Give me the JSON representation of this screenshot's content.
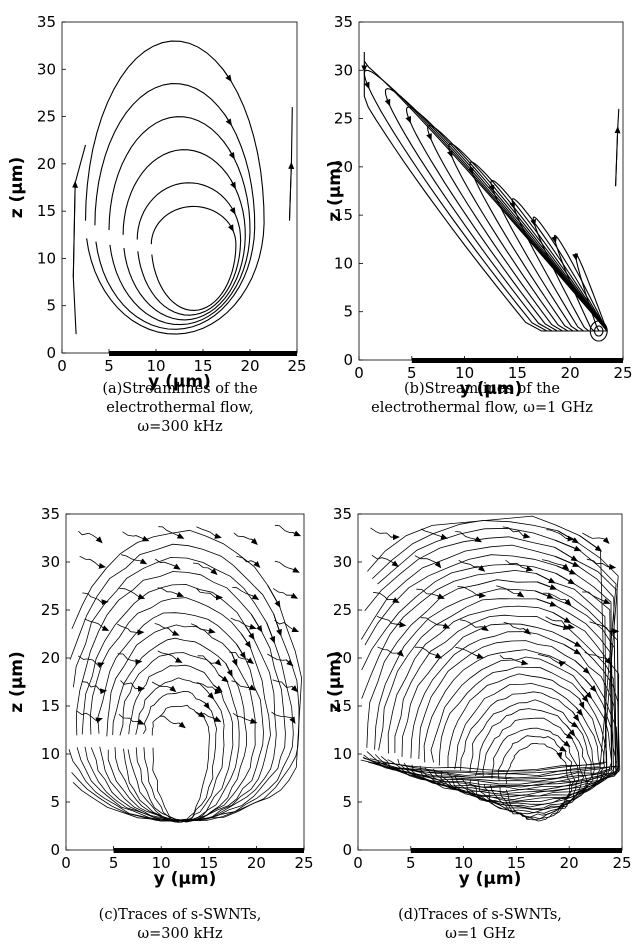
{
  "figure": {
    "panels": [
      {
        "id": "a",
        "kind": "streamlines",
        "caption": [
          "(a)Streamlines of the",
          "electrothermal flow,",
          "ω=300 kHz"
        ],
        "xlabel": "y (µm)",
        "ylabel": "z (µm)",
        "xticks": [
          "0",
          "5",
          "10",
          "15",
          "20",
          "25"
        ],
        "yticks": [
          "0",
          "5",
          "10",
          "15",
          "20",
          "25",
          "30",
          "35"
        ]
      },
      {
        "id": "b",
        "kind": "streamlines",
        "caption": [
          "(b)Streamlines of the",
          "electrothermal flow, ω=1 GHz"
        ],
        "xlabel": "y (µm)",
        "ylabel": "z (µm)",
        "xticks": [
          "0",
          "5",
          "10",
          "15",
          "20",
          "25"
        ],
        "yticks": [
          "0",
          "5",
          "10",
          "15",
          "20",
          "25",
          "30",
          "35"
        ]
      },
      {
        "id": "c",
        "kind": "traces",
        "caption": [
          "(c)Traces of s-SWNTs,",
          "ω=300 kHz"
        ],
        "xlabel": "y (µm)",
        "ylabel": "z (µm)",
        "xticks": [
          "0",
          "5",
          "10",
          "15",
          "20",
          "25"
        ],
        "yticks": [
          "0",
          "5",
          "10",
          "15",
          "20",
          "25",
          "30",
          "35"
        ]
      },
      {
        "id": "d",
        "kind": "traces",
        "caption": [
          "(d)Traces of s-SWNTs,",
          "ω=1 GHz"
        ],
        "xlabel": "y (µm)",
        "ylabel": "z (µm)",
        "xticks": [
          "0",
          "5",
          "10",
          "15",
          "20",
          "25"
        ],
        "yticks": [
          "0",
          "5",
          "10",
          "15",
          "20",
          "25",
          "30",
          "35"
        ]
      }
    ],
    "electrode": {
      "y_range": [
        5,
        25
      ],
      "color": "#000000"
    },
    "axis_range": {
      "y": [
        0,
        25
      ],
      "z": [
        0,
        35
      ]
    }
  }
}
